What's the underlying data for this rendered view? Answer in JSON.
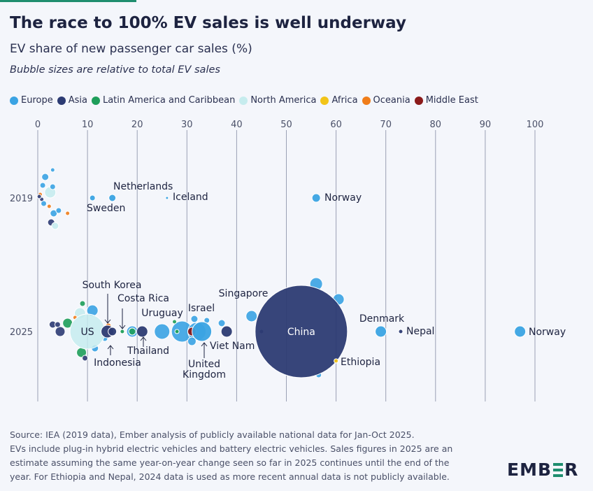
{
  "title": "The race to 100% EV sales is well underway",
  "subtitle": "EV share of new passenger car sales (%)",
  "note": "Bubble sizes are relative to total EV sales",
  "legend": [
    {
      "label": "Europe",
      "color": "#3aa3e3"
    },
    {
      "label": "Asia",
      "color": "#2c3b73"
    },
    {
      "label": "Latin America and Caribbean",
      "color": "#1e9e5a"
    },
    {
      "label": "North America",
      "color": "#c6ecee"
    },
    {
      "label": "Africa",
      "color": "#f2c418"
    },
    {
      "label": "Oceania",
      "color": "#f07d1a"
    },
    {
      "label": "Middle East",
      "color": "#8b1a1a"
    }
  ],
  "chart_data": {
    "type": "scatter",
    "xlabel": "",
    "ylabel": "",
    "xlim": [
      0,
      100
    ],
    "x_ticks": [
      "0",
      "10",
      "20",
      "30",
      "40",
      "50",
      "60",
      "70",
      "80",
      "90",
      "100"
    ],
    "rows": [
      "2019",
      "2025"
    ],
    "grid": true,
    "legend_position": "top-left",
    "size_encoding": "total EV sales (relative)",
    "labeled_points": [
      {
        "label": "Netherlands",
        "year": "2019",
        "x": 15,
        "region": "Europe"
      },
      {
        "label": "Sweden",
        "year": "2019",
        "x": 11,
        "region": "Europe"
      },
      {
        "label": "Iceland",
        "year": "2019",
        "x": 26,
        "region": "Europe"
      },
      {
        "label": "Norway",
        "year": "2019",
        "x": 56,
        "region": "Europe"
      },
      {
        "label": "US",
        "year": "2025",
        "x": 10,
        "region": "North America"
      },
      {
        "label": "South Korea",
        "year": "2025",
        "x": 14,
        "region": "Asia"
      },
      {
        "label": "Costa Rica",
        "year": "2025",
        "x": 17,
        "region": "Latin America and Caribbean"
      },
      {
        "label": "Uruguay",
        "year": "2025",
        "x": 28,
        "region": "Latin America and Caribbean"
      },
      {
        "label": "Israel",
        "year": "2025",
        "x": 31,
        "region": "Middle East"
      },
      {
        "label": "Singapore",
        "year": "2025",
        "x": 45,
        "region": "Asia"
      },
      {
        "label": "Indonesia",
        "year": "2025",
        "x": 15,
        "region": "Asia"
      },
      {
        "label": "Thailand",
        "year": "2025",
        "x": 21,
        "region": "Asia"
      },
      {
        "label": "United Kingdom",
        "year": "2025",
        "x": 33,
        "region": "Europe"
      },
      {
        "label": "Viet Nam",
        "year": "2025",
        "x": 38,
        "region": "Asia"
      },
      {
        "label": "China",
        "year": "2025",
        "x": 53,
        "region": "Asia"
      },
      {
        "label": "Ethiopia",
        "year": "2025",
        "x": 60,
        "region": "Africa"
      },
      {
        "label": "Denmark",
        "year": "2025",
        "x": 69,
        "region": "Europe"
      },
      {
        "label": "Nepal",
        "year": "2025",
        "x": 73,
        "region": "Asia"
      },
      {
        "label": "Norway",
        "year": "2025",
        "x": 97,
        "region": "Europe"
      }
    ]
  },
  "footer": {
    "line1": "Source: IEA (2019 data), Ember analysis of publicly available national data for Jan-Oct 2025.",
    "line2": "EVs include plug-in hybrid electric vehicles and battery electric vehicles. Sales figures in 2025 are an",
    "line3": "estimate assuming the same year-on-year change seen so far in 2025 continues until the end of the",
    "line4": "year. For Ethiopia and Nepal, 2024 data is used as more recent annual data is not publicly available."
  },
  "logo": "EMBER"
}
